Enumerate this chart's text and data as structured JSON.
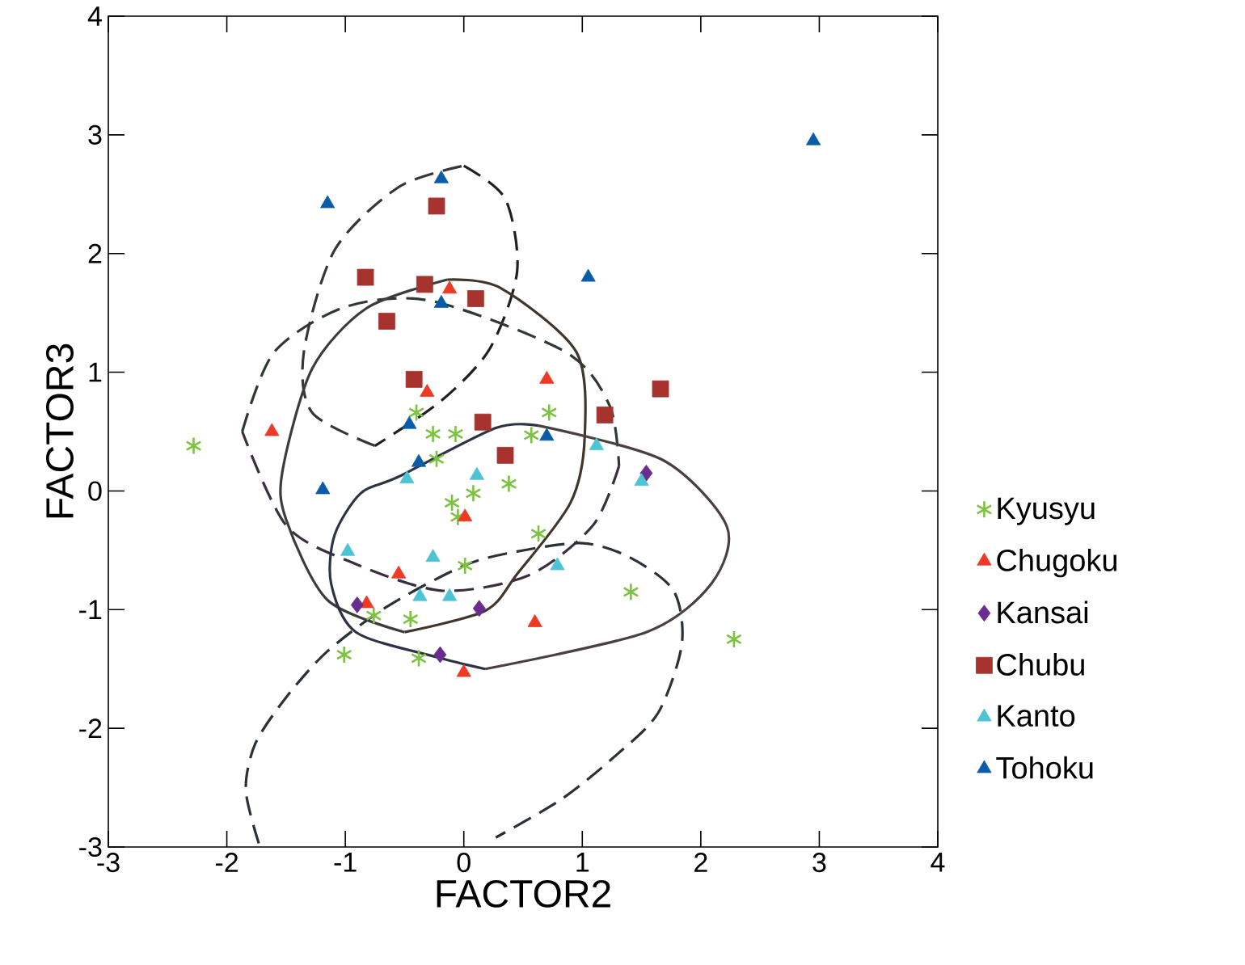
{
  "chart_data": {
    "type": "scatter",
    "xlabel": "FACTOR2",
    "ylabel": "FACTOR3",
    "xlim": [
      -3,
      4
    ],
    "ylim": [
      -3,
      4
    ],
    "xticks": [
      -3,
      -2,
      -1,
      0,
      1,
      2,
      3,
      4
    ],
    "yticks": [
      -3,
      -2,
      -1,
      0,
      1,
      2,
      3,
      4
    ],
    "grid": false,
    "legend": "right",
    "series": [
      {
        "name": "Kyusyu",
        "color": "#7dc242",
        "marker": "cross",
        "x": [
          -2.28,
          -0.4,
          -0.26,
          -0.07,
          -0.23,
          0.72,
          0.57,
          -0.1,
          0.08,
          0.38,
          -0.05,
          0.01,
          -0.45,
          -0.76,
          -1.01,
          -0.38,
          0.63,
          1.41,
          2.28
        ],
        "values": [
          0.38,
          0.66,
          0.48,
          0.48,
          0.27,
          0.66,
          0.47,
          -0.1,
          -0.02,
          0.06,
          -0.22,
          -0.63,
          -1.08,
          -1.05,
          -1.38,
          -1.41,
          -0.36,
          -0.85,
          -1.25
        ]
      },
      {
        "name": "Chugoku",
        "color": "#ee3a24",
        "marker": "triangle",
        "x": [
          -1.62,
          -0.31,
          -0.12,
          0.7,
          -0.55,
          -0.82,
          0.0,
          0.01,
          0.6
        ],
        "values": [
          0.5,
          0.83,
          1.7,
          0.94,
          -0.7,
          -0.95,
          -1.53,
          -0.22,
          -1.11
        ]
      },
      {
        "name": "Kansai",
        "color": "#6a2d8f",
        "marker": "diamond",
        "x": [
          -0.9,
          -0.2,
          0.13,
          1.54
        ],
        "values": [
          -0.96,
          -1.38,
          -0.99,
          0.15
        ]
      },
      {
        "name": "Chubu",
        "color": "#a6332e",
        "marker": "square",
        "x": [
          -0.23,
          -0.83,
          -0.33,
          0.1,
          -0.65,
          -0.42,
          0.16,
          0.35,
          1.66,
          1.19
        ],
        "values": [
          2.4,
          1.8,
          1.74,
          1.62,
          1.43,
          0.94,
          0.58,
          0.3,
          0.86,
          0.64
        ]
      },
      {
        "name": "Kanto",
        "color": "#4fc3d6",
        "marker": "triangle",
        "x": [
          -0.48,
          0.11,
          -0.98,
          -0.26,
          -0.37,
          -0.12,
          1.12,
          1.5,
          0.79
        ],
        "values": [
          0.1,
          0.13,
          -0.51,
          -0.56,
          -0.89,
          -0.89,
          0.38,
          0.08,
          -0.63
        ]
      },
      {
        "name": "Tohoku",
        "color": "#0a5ca8",
        "marker": "triangle",
        "x": [
          2.95,
          -1.15,
          -0.19,
          -0.19,
          1.05,
          -1.19,
          -0.38,
          -0.46,
          0.7
        ],
        "values": [
          2.95,
          2.42,
          2.63,
          1.58,
          1.8,
          0.01,
          0.24,
          0.56,
          0.46
        ]
      },
      {
        "type": "line",
        "color": "#231f20",
        "marker": "none",
        "line_style": "dashed",
        "x": [
          0.0,
          0.35,
          0.45,
          0.22,
          -0.19,
          -0.75
        ],
        "values": [
          2.74,
          2.46,
          1.85,
          1.2,
          0.76,
          0.38
        ]
      },
      {
        "type": "line",
        "color": "#3a3436",
        "marker": "none",
        "line_style": "dashed",
        "x": [
          -0.75,
          -1.28,
          -1.35,
          -1.09,
          -0.55,
          0.0
        ],
        "values": [
          0.38,
          0.66,
          1.17,
          2.03,
          2.56,
          2.74
        ]
      },
      {
        "type": "line",
        "color": "#2e3a30",
        "marker": "none",
        "line_style": "dashed",
        "x": [
          -1.87,
          -1.6,
          -1.0,
          -0.27,
          0.86,
          1.23,
          1.31
        ],
        "values": [
          0.5,
          1.17,
          1.55,
          1.6,
          1.17,
          0.72,
          0.21
        ]
      },
      {
        "type": "line",
        "color": "#3a2e40",
        "marker": "none",
        "line_style": "dashed",
        "x": [
          1.31,
          1.09,
          0.55,
          -0.19,
          -0.95,
          -1.5,
          -1.87
        ],
        "values": [
          0.21,
          -0.29,
          -0.71,
          -0.84,
          -0.6,
          -0.29,
          0.5
        ]
      },
      {
        "type": "line",
        "color": "#3c3c3c",
        "marker": "none",
        "line_style": "solid",
        "x": [
          -0.14,
          -0.82,
          -1.28,
          -1.53,
          -1.5,
          -1.15,
          -0.5
        ],
        "values": [
          1.78,
          1.54,
          1.03,
          0.17,
          -0.24,
          -0.92,
          -1.19
        ]
      },
      {
        "type": "line",
        "color": "#40362c",
        "marker": "none",
        "line_style": "solid",
        "x": [
          -0.5,
          0.18,
          0.45,
          0.9,
          1.02,
          0.95,
          0.31,
          -0.14
        ],
        "values": [
          -1.19,
          -1.01,
          -0.7,
          -0.1,
          0.45,
          1.17,
          1.71,
          1.78
        ]
      },
      {
        "type": "line",
        "color": "#4a4040",
        "marker": "none",
        "line_style": "solid",
        "x": [
          0.63,
          1.68,
          2.22,
          2.09,
          1.54,
          0.18
        ],
        "values": [
          0.55,
          0.26,
          -0.3,
          -0.78,
          -1.19,
          -1.5
        ]
      },
      {
        "type": "line",
        "color": "#2c3444",
        "marker": "none",
        "line_style": "solid",
        "x": [
          0.18,
          -0.23,
          -0.91,
          -1.12,
          -1.09,
          -0.87,
          -0.55,
          0.27,
          0.63
        ],
        "values": [
          -1.5,
          -1.4,
          -1.19,
          -0.78,
          -0.37,
          -0.02,
          0.12,
          0.53,
          0.55
        ]
      },
      {
        "type": "line",
        "color": "#2a3238",
        "marker": "none",
        "line_style": "dashed",
        "x": [
          -1.73,
          -1.84,
          -1.76,
          -1.5,
          -1.15,
          -0.64,
          0.0,
          0.45,
          1.0,
          1.4,
          1.77,
          1.84,
          1.64,
          1.27,
          0.82,
          0.27
        ],
        "values": [
          -2.97,
          -2.52,
          -2.13,
          -1.74,
          -1.35,
          -0.97,
          -0.63,
          -0.51,
          -0.44,
          -0.56,
          -0.84,
          -1.29,
          -1.87,
          -2.24,
          -2.6,
          -2.92
        ]
      }
    ]
  }
}
